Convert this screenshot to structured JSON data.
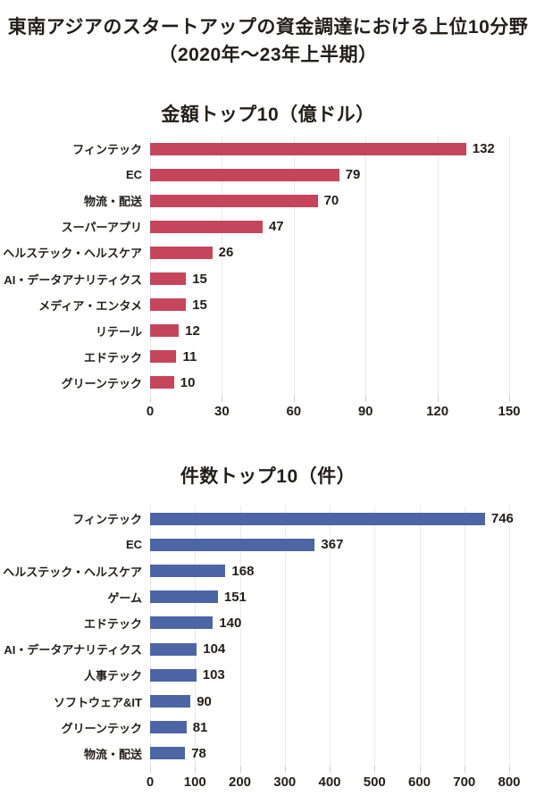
{
  "page": {
    "title_line1": "東南アジアのスタートアップの資金調達における上位10分野",
    "title_line2": "（2020年〜23年上半期）",
    "background_color": "#ffffff",
    "text_color": "#241e18"
  },
  "chart_data": [
    {
      "type": "bar",
      "orientation": "horizontal",
      "title": "金額トップ10（億ドル）",
      "categories": [
        "フィンテック",
        "EC",
        "物流・配送",
        "スーパーアプリ",
        "ヘルステック・ヘルスケア",
        "AI・データアナリティクス",
        "メディア・エンタメ",
        "リテール",
        "エドテック",
        "グリーンテック"
      ],
      "values": [
        132,
        79,
        70,
        47,
        26,
        15,
        15,
        12,
        11,
        10
      ],
      "xlim": [
        0,
        150
      ],
      "xticks": [
        0,
        30,
        60,
        90,
        120,
        150
      ],
      "bar_color": "#c5465b",
      "grid": true,
      "legend": false,
      "value_labels": true
    },
    {
      "type": "bar",
      "orientation": "horizontal",
      "title": "件数トップ10（件）",
      "categories": [
        "フィンテック",
        "EC",
        "ヘルステック・ヘルスケア",
        "ゲーム",
        "エドテック",
        "AI・データアナリティクス",
        "人事テック",
        "ソフトウェア&IT",
        "グリーンテック",
        "物流・配送"
      ],
      "values": [
        746,
        367,
        168,
        151,
        140,
        104,
        103,
        90,
        81,
        78
      ],
      "xlim": [
        0,
        800
      ],
      "xticks": [
        0,
        100,
        200,
        300,
        400,
        500,
        600,
        700,
        800
      ],
      "bar_color": "#4c65a5",
      "grid": true,
      "legend": false,
      "value_labels": true
    }
  ]
}
